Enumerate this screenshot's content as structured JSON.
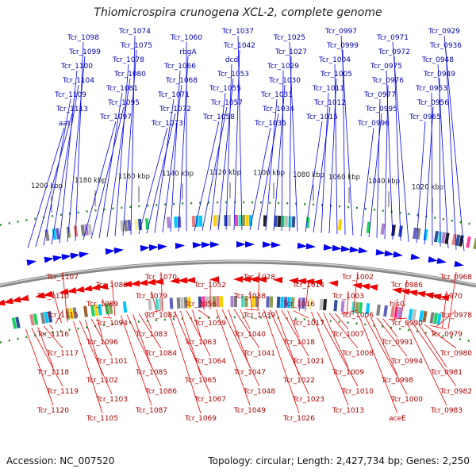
{
  "title": "Thiomicrospira crunogena XCL-2, complete genome",
  "footer": {
    "accession": "Accession: NC_007520",
    "summary": "Topology: circular; Length: 2,427,734 bp; Genes: 2,250"
  },
  "colors": {
    "plus": "#0000ee",
    "minus": "#ee0000",
    "backbone": "#888888",
    "ticks": "#2a8a2a"
  },
  "kbp_ticks": [
    "1020 kbp",
    "1040 kbp",
    "1060 kbp",
    "1080 kbp",
    "1100 kbp",
    "1120 kbp",
    "1140 kbp",
    "1160 kbp",
    "1180 kbp",
    "1200 kbp"
  ],
  "plus_labels": [
    "Tcr_0929",
    "Tcr_0936",
    "Tcr_0948",
    "Tcr_0949",
    "Tcr_0953",
    "Tcr_0956",
    "Tcr_0965",
    "Tcr_0971",
    "Tcr_0972",
    "Tcr_0975",
    "Tcr_0976",
    "Tcr_0977",
    "Tcr_0995",
    "Tcr_0996",
    "Tcr_0997",
    "Tcr_0999",
    "Tcr_1004",
    "Tcr_1005",
    "Tcr_1011",
    "Tcr_1012",
    "Tcr_1015",
    "Tcr_1025",
    "Tcr_1027",
    "Tcr_1029",
    "Tcr_1030",
    "Tcr_1031",
    "Tcr_1034",
    "Tcr_1035",
    "Tcr_1037",
    "Tcr_1042",
    "dcd",
    "Tcr_1053",
    "Tcr_1055",
    "Tcr_1057",
    "Tcr_1058",
    "Tcr_1060",
    "rbgA",
    "Tcr_1066",
    "Tcr_1068",
    "Tcr_1071",
    "Tcr_1072",
    "Tcr_1073",
    "Tcr_1074",
    "Tcr_1075",
    "Tcr_1078",
    "Tcr_1080",
    "Tcr_1081",
    "Tcr_1095",
    "Tcr_1097",
    "Tcr_1098",
    "Tcr_1099",
    "Tcr_1100",
    "Tcr_1104",
    "Tcr_1109",
    "Tcr_1113",
    "aat"
  ],
  "minus_labels": [
    "Tcr_0968",
    "Tcr_0970",
    "Tcr_0978",
    "Tcr_0979",
    "Tcr_0980",
    "Tcr_0981",
    "Tcr_0982",
    "Tcr_0983",
    "Tcr_0986",
    "hisG",
    "Tcr_0990",
    "Tcr_0991",
    "Tcr_0994",
    "Tcr_0998",
    "Tcr_1000",
    "aceE",
    "Tcr_1002",
    "Tcr_1003",
    "Tcr_1006",
    "Tcr_1007",
    "Tcr_1008",
    "Tcr_1009",
    "Tcr_1010",
    "Tcr_1013",
    "Tcr_1014",
    "Tcr_1016",
    "Tcr_1017",
    "Tcr_1018",
    "Tcr_1021",
    "Tcr_1022",
    "Tcr_1023",
    "Tcr_1026",
    "Tcr_1028",
    "Tcr_1038",
    "Tcr_1039",
    "Tcr_1040",
    "Tcr_1041",
    "Tcr_1047",
    "Tcr_1048",
    "Tcr_1049",
    "Tcr_1052",
    "Tcr_1056",
    "Tcr_1059",
    "Tcr_1063",
    "Tcr_1064",
    "Tcr_1065",
    "Tcr_1067",
    "Tcr_1069",
    "Tcr_1070",
    "Tcr_1079",
    "Tcr_1082",
    "Tcr_1083",
    "Tcr_1084",
    "Tcr_1085",
    "Tcr_1086",
    "Tcr_1087",
    "Tcr_1088",
    "Tcr_1089",
    "Tcr_1094",
    "Tcr_1096",
    "Tcr_1101",
    "Tcr_1102",
    "Tcr_1103",
    "Tcr_1105",
    "Tcr_1107",
    "Tcr_1110",
    "Tcr_1115",
    "Tcr_1116",
    "Tcr_1117",
    "Tcr_1118",
    "Tcr_1119",
    "Tcr_1120"
  ]
}
